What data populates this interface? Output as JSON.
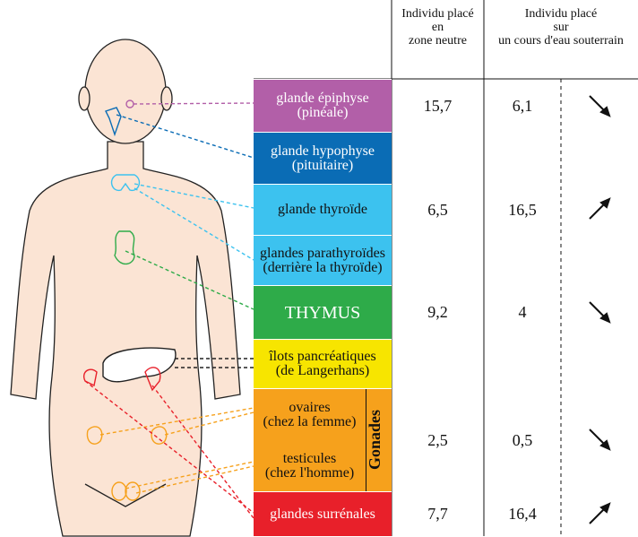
{
  "header": {
    "neutral": [
      "Individu placé",
      "en",
      "zone neutre"
    ],
    "stream": [
      "Individu placé",
      "sur",
      "un cours d'eau souterrain"
    ]
  },
  "rows": [
    {
      "label": [
        "glande épiphyse",
        "(pinéale)"
      ],
      "color": "#b25fa8",
      "text_color": "#ffffff",
      "neutral": "15,7",
      "stream": "6,1"
    },
    {
      "label": [
        "glande hypophyse",
        "(pituitaire)"
      ],
      "color": "#0a6cb5",
      "text_color": "#ffffff"
    },
    {
      "label": [
        "glande thyroïde"
      ],
      "color": "#3cc2ef",
      "text_color": "#111111",
      "neutral": "6,5",
      "stream": "16,5"
    },
    {
      "label": [
        "glandes parathyroïdes",
        "(derrière la thyroïde)"
      ],
      "color": "#3cc2ef",
      "text_color": "#111111"
    },
    {
      "label": [
        "THYMUS"
      ],
      "color": "#2eab49",
      "text_color": "#ffffff",
      "neutral": "9,2",
      "stream": "4"
    },
    {
      "label": [
        "îlots pancréatiques",
        "(de Langerhans)"
      ],
      "color": "#f7e500",
      "text_color": "#111111"
    },
    {
      "group": "Gonades",
      "items": [
        [
          "ovaires",
          "(chez la femme)"
        ],
        [
          "testicules",
          "(chez l'homme)"
        ]
      ],
      "color": "#f6a11c",
      "text_color": "#111111",
      "neutral": "2,5",
      "stream": "0,5"
    },
    {
      "label": [
        "glandes surrénales"
      ],
      "color": "#e8202a",
      "text_color": "#ffffff",
      "neutral": "7,7",
      "stream": "16,4"
    }
  ]
}
